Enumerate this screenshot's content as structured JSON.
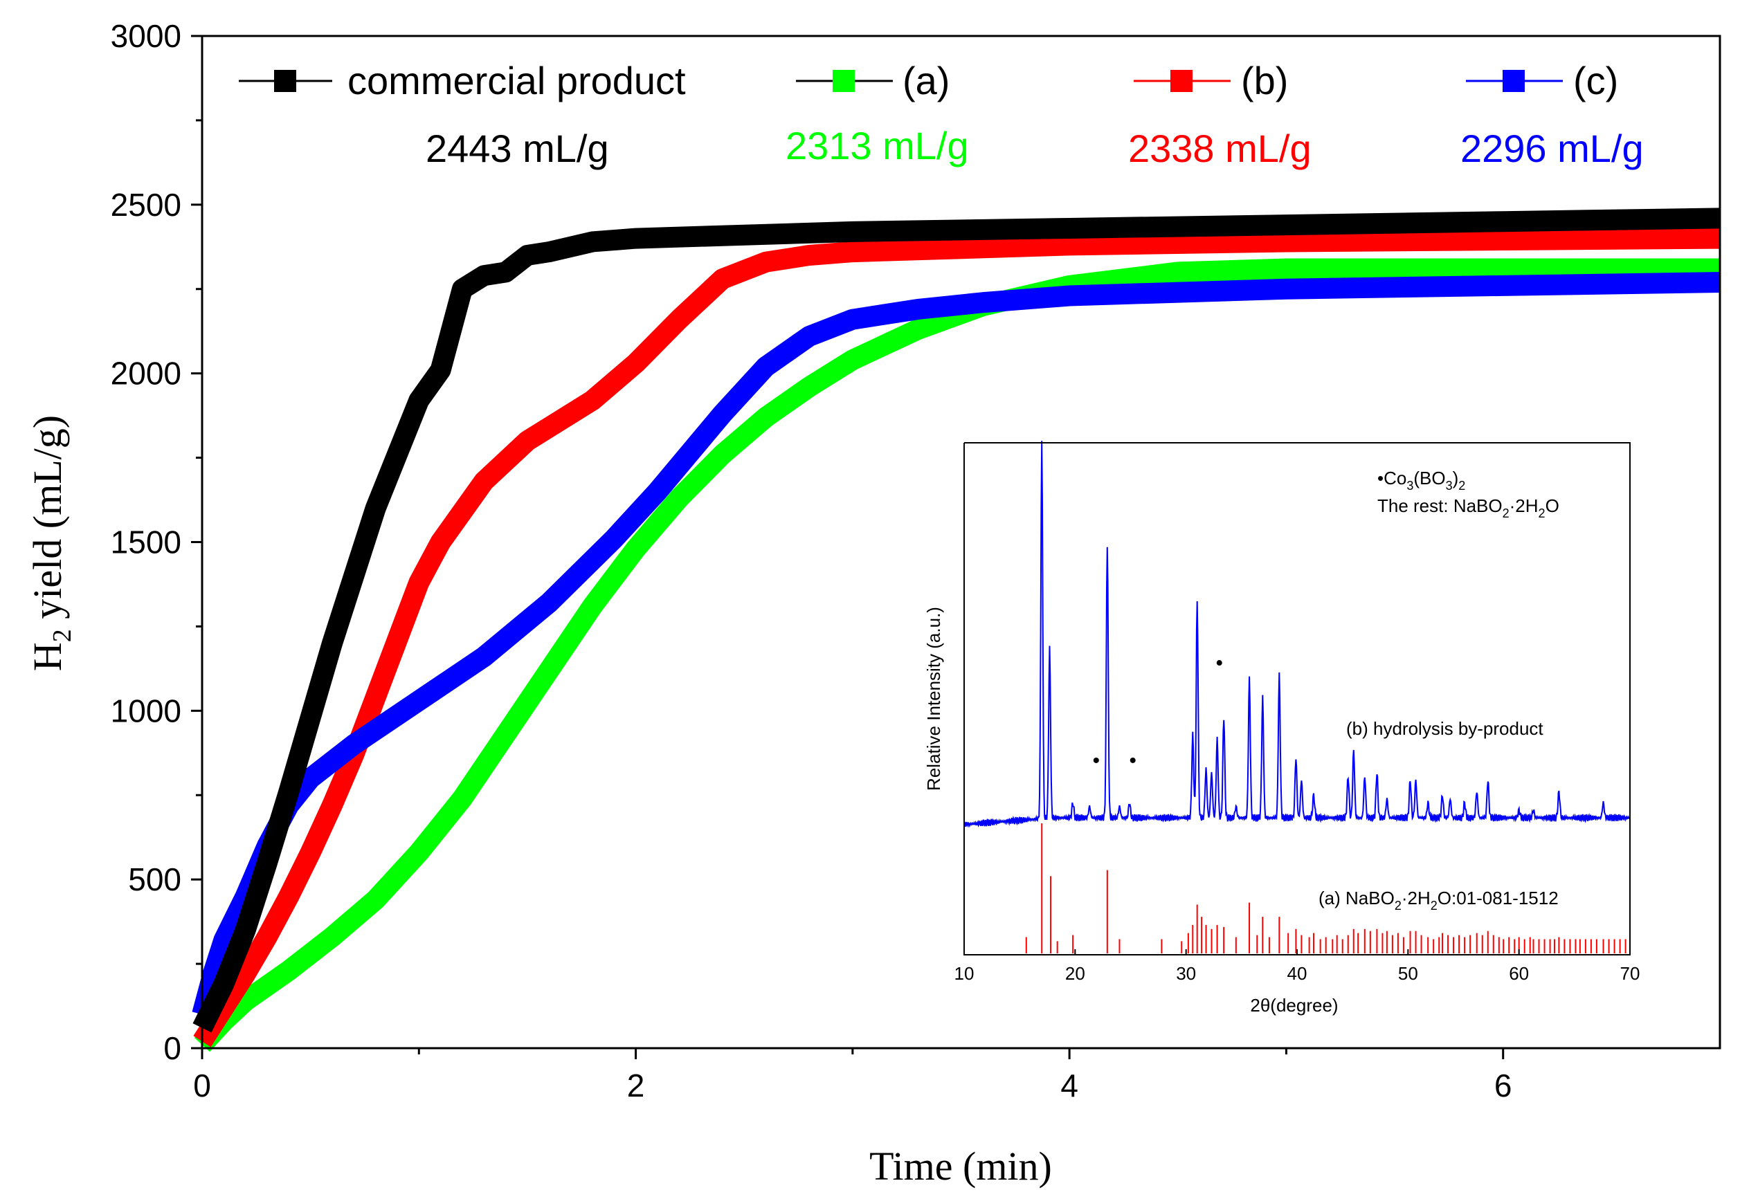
{
  "chart_data": [
    {
      "type": "line",
      "title": "",
      "xlabel": "Time (min)",
      "ylabel_main": "H",
      "ylabel_sub": "2",
      "ylabel_rest": " yield (mL/g)",
      "xlim": [
        0,
        7
      ],
      "ylim": [
        0,
        3000
      ],
      "x_ticks": [
        0,
        2,
        4,
        6
      ],
      "x_tick_labels": [
        "0",
        "2",
        "4",
        "6"
      ],
      "y_ticks": [
        0,
        500,
        1000,
        1500,
        2000,
        2500,
        3000
      ],
      "y_tick_labels": [
        "0",
        "500",
        "1000",
        "1500",
        "2000",
        "2500",
        "3000"
      ],
      "legend": [
        {
          "name": "commercial product",
          "line_color": "#000000",
          "marker_color": "#000000",
          "value": "2443 mL/g",
          "value_color": "#000000"
        },
        {
          "name": "(a)",
          "line_color": "#000000",
          "marker_color": "#00ff00",
          "value": "2313 mL/g",
          "value_color": "#00ff00"
        },
        {
          "name": "(b)",
          "line_color": "#ff0000",
          "marker_color": "#ff0000",
          "value": "2338 mL/g",
          "value_color": "#ff0000"
        },
        {
          "name": "(c)",
          "line_color": "#0000ff",
          "marker_color": "#0000ff",
          "value": "2296 mL/g",
          "value_color": "#0000ff"
        }
      ],
      "series": [
        {
          "name": "commercial product",
          "color": "#000000",
          "x": [
            0,
            0.1,
            0.2,
            0.3,
            0.4,
            0.5,
            0.6,
            0.7,
            0.8,
            0.9,
            1.0,
            1.1,
            1.2,
            1.3,
            1.4,
            1.5,
            1.6,
            1.8,
            2.0,
            2.5,
            3.0,
            4.0,
            5.0,
            6.0,
            7.0
          ],
          "y": [
            60,
            190,
            350,
            550,
            760,
            980,
            1200,
            1400,
            1600,
            1760,
            1920,
            2010,
            2250,
            2290,
            2300,
            2350,
            2360,
            2390,
            2400,
            2410,
            2420,
            2430,
            2440,
            2450,
            2460
          ]
        },
        {
          "name": "(a)",
          "color": "#00ff00",
          "x": [
            0,
            0.1,
            0.2,
            0.4,
            0.6,
            0.8,
            1.0,
            1.2,
            1.4,
            1.6,
            1.8,
            2.0,
            2.2,
            2.4,
            2.6,
            2.8,
            3.0,
            3.3,
            3.6,
            4.0,
            4.5,
            5.0,
            6.0,
            7.0
          ],
          "y": [
            10,
            80,
            140,
            230,
            330,
            440,
            580,
            740,
            930,
            1120,
            1310,
            1480,
            1630,
            1760,
            1870,
            1960,
            2040,
            2130,
            2200,
            2260,
            2300,
            2310,
            2310,
            2310
          ]
        },
        {
          "name": "(b)",
          "color": "#ff0000",
          "x": [
            0,
            0.1,
            0.2,
            0.3,
            0.4,
            0.5,
            0.6,
            0.7,
            0.8,
            0.9,
            1.0,
            1.1,
            1.2,
            1.3,
            1.4,
            1.5,
            1.6,
            1.8,
            2.0,
            2.2,
            2.4,
            2.6,
            2.8,
            3.0,
            4.0,
            5.0,
            6.0,
            7.0
          ],
          "y": [
            20,
            120,
            220,
            330,
            450,
            580,
            720,
            870,
            1040,
            1210,
            1380,
            1500,
            1590,
            1680,
            1740,
            1800,
            1840,
            1920,
            2030,
            2160,
            2280,
            2330,
            2350,
            2360,
            2380,
            2390,
            2395,
            2400
          ]
        },
        {
          "name": "(c)",
          "color": "#0000ff",
          "x": [
            0,
            0.05,
            0.1,
            0.2,
            0.3,
            0.4,
            0.5,
            0.7,
            1.0,
            1.3,
            1.6,
            1.9,
            2.1,
            2.4,
            2.6,
            2.8,
            3.0,
            3.3,
            3.6,
            4.0,
            5.0,
            6.0,
            7.0
          ],
          "y": [
            100,
            220,
            320,
            450,
            600,
            720,
            800,
            900,
            1030,
            1160,
            1320,
            1510,
            1650,
            1880,
            2020,
            2110,
            2160,
            2190,
            2210,
            2230,
            2250,
            2260,
            2270
          ]
        }
      ]
    },
    {
      "type": "line",
      "title": "",
      "xlabel": "2θ(degree)",
      "ylabel": "Relative Intensity (a.u.)",
      "xlim": [
        10,
        70
      ],
      "x_ticks": [
        10,
        20,
        30,
        40,
        50,
        60,
        70
      ],
      "x_tick_labels": [
        "10",
        "20",
        "30",
        "40",
        "50",
        "60",
        "70"
      ],
      "annotations": {
        "dot_label": "•Co",
        "dot_label_sub1": "3",
        "dot_label_mid": "(BO",
        "dot_label_sub2": "3",
        "dot_label_end": ")",
        "dot_label_sub3": "2",
        "rest_pre": "The rest: NaBO",
        "rest_sub1": "2",
        "rest_mid": "·2H",
        "rest_sub2": "2",
        "rest_end": "O",
        "b_label": "(b) hydrolysis by-product",
        "a_pre": "(a) NaBO",
        "a_sub1": "2",
        "a_mid": "·2H",
        "a_sub2": "2",
        "a_end": "O:01-081-1512"
      },
      "series": [
        {
          "name": "(b) hydrolysis by-product",
          "color": "#0000ff",
          "baseline": 0.12,
          "peaks": [
            [
              17.0,
              1.0
            ],
            [
              17.7,
              0.45
            ],
            [
              19.8,
              0.04
            ],
            [
              21.3,
              0.03
            ],
            [
              22.9,
              0.73
            ],
            [
              24.0,
              0.03
            ],
            [
              24.9,
              0.04
            ],
            [
              30.6,
              0.22
            ],
            [
              31.0,
              0.58
            ],
            [
              31.8,
              0.13
            ],
            [
              32.3,
              0.12
            ],
            [
              32.8,
              0.21
            ],
            [
              33.4,
              0.27
            ],
            [
              34.5,
              0.03
            ],
            [
              35.7,
              0.37
            ],
            [
              36.9,
              0.32
            ],
            [
              38.4,
              0.38
            ],
            [
              39.9,
              0.16
            ],
            [
              40.4,
              0.1
            ],
            [
              41.5,
              0.06
            ],
            [
              44.6,
              0.11
            ],
            [
              45.1,
              0.18
            ],
            [
              46.1,
              0.11
            ],
            [
              47.2,
              0.12
            ],
            [
              48.1,
              0.05
            ],
            [
              50.2,
              0.1
            ],
            [
              50.7,
              0.1
            ],
            [
              51.8,
              0.04
            ],
            [
              53.1,
              0.06
            ],
            [
              53.8,
              0.05
            ],
            [
              55.1,
              0.04
            ],
            [
              56.2,
              0.07
            ],
            [
              57.2,
              0.1
            ],
            [
              60.0,
              0.02
            ],
            [
              61.3,
              0.02
            ],
            [
              63.6,
              0.07
            ],
            [
              67.6,
              0.04
            ]
          ],
          "dots": [
            [
              21.9,
              0.12
            ],
            [
              25.2,
              0.12
            ],
            [
              33.0,
              0.38
            ]
          ]
        },
        {
          "name": "(a) NaBO2·2H2O:01-081-1512",
          "color": "#ff0000",
          "sticks": [
            [
              15.6,
              0.08
            ],
            [
              17.0,
              0.64
            ],
            [
              17.8,
              0.38
            ],
            [
              18.4,
              0.06
            ],
            [
              19.8,
              0.09
            ],
            [
              22.9,
              0.41
            ],
            [
              24.0,
              0.07
            ],
            [
              27.8,
              0.07
            ],
            [
              29.6,
              0.06
            ],
            [
              30.2,
              0.1
            ],
            [
              30.6,
              0.14
            ],
            [
              31.0,
              0.24
            ],
            [
              31.4,
              0.18
            ],
            [
              31.8,
              0.14
            ],
            [
              32.3,
              0.12
            ],
            [
              32.8,
              0.14
            ],
            [
              33.4,
              0.13
            ],
            [
              34.5,
              0.08
            ],
            [
              35.7,
              0.25
            ],
            [
              36.4,
              0.09
            ],
            [
              36.9,
              0.18
            ],
            [
              37.5,
              0.08
            ],
            [
              38.4,
              0.18
            ],
            [
              39.2,
              0.1
            ],
            [
              39.9,
              0.12
            ],
            [
              40.4,
              0.09
            ],
            [
              41.1,
              0.08
            ],
            [
              41.5,
              0.1
            ],
            [
              42.1,
              0.07
            ],
            [
              42.6,
              0.08
            ],
            [
              43.2,
              0.07
            ],
            [
              43.6,
              0.09
            ],
            [
              44.1,
              0.07
            ],
            [
              44.6,
              0.09
            ],
            [
              45.1,
              0.12
            ],
            [
              45.5,
              0.1
            ],
            [
              46.1,
              0.12
            ],
            [
              46.6,
              0.11
            ],
            [
              47.2,
              0.12
            ],
            [
              47.7,
              0.1
            ],
            [
              48.1,
              0.11
            ],
            [
              48.6,
              0.09
            ],
            [
              49.1,
              0.1
            ],
            [
              49.6,
              0.08
            ],
            [
              50.2,
              0.11
            ],
            [
              50.7,
              0.11
            ],
            [
              51.2,
              0.09
            ],
            [
              51.8,
              0.08
            ],
            [
              52.3,
              0.07
            ],
            [
              52.8,
              0.08
            ],
            [
              53.1,
              0.1
            ],
            [
              53.6,
              0.09
            ],
            [
              54.1,
              0.08
            ],
            [
              54.6,
              0.09
            ],
            [
              55.1,
              0.08
            ],
            [
              55.6,
              0.09
            ],
            [
              56.2,
              0.1
            ],
            [
              56.7,
              0.09
            ],
            [
              57.2,
              0.11
            ],
            [
              57.7,
              0.09
            ],
            [
              58.2,
              0.08
            ],
            [
              58.6,
              0.07
            ],
            [
              59.1,
              0.08
            ],
            [
              59.6,
              0.07
            ],
            [
              60.0,
              0.08
            ],
            [
              60.5,
              0.07
            ],
            [
              61.0,
              0.08
            ],
            [
              61.3,
              0.07
            ],
            [
              61.8,
              0.07
            ],
            [
              62.3,
              0.07
            ],
            [
              62.8,
              0.07
            ],
            [
              63.2,
              0.07
            ],
            [
              63.6,
              0.08
            ],
            [
              64.1,
              0.07
            ],
            [
              64.6,
              0.07
            ],
            [
              65.1,
              0.07
            ],
            [
              65.5,
              0.07
            ],
            [
              66.0,
              0.07
            ],
            [
              66.5,
              0.07
            ],
            [
              67.0,
              0.07
            ],
            [
              67.6,
              0.07
            ],
            [
              68.1,
              0.07
            ],
            [
              68.6,
              0.07
            ],
            [
              69.1,
              0.07
            ],
            [
              69.6,
              0.07
            ]
          ]
        }
      ]
    }
  ]
}
